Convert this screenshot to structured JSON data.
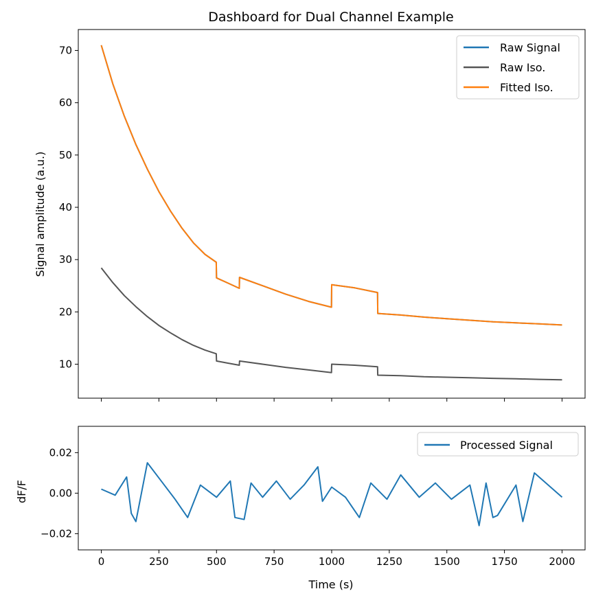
{
  "chart_data": [
    {
      "type": "line",
      "title": "Dashboard for Dual Channel Example",
      "xlabel": "",
      "ylabel": "Signal amplitude (a.u.)",
      "xlim": [
        -100,
        2100
      ],
      "ylim": [
        3.5,
        74
      ],
      "xticks": [
        0,
        250,
        500,
        750,
        1000,
        1250,
        1500,
        1750,
        2000
      ],
      "yticks": [
        10,
        20,
        30,
        40,
        50,
        60,
        70
      ],
      "yticklabels": [
        "10",
        "20",
        "30",
        "40",
        "50",
        "60",
        "70"
      ],
      "legend_position": "top-right",
      "grid": false,
      "series": [
        {
          "name": "Raw Signal",
          "color": "#1f77b4",
          "x": [
            0,
            50,
            100,
            150,
            200,
            250,
            300,
            350,
            400,
            450,
            499,
            500,
            550,
            599,
            600,
            700,
            800,
            900,
            999,
            1000,
            1100,
            1199,
            1200,
            1300,
            1400,
            1500,
            1600,
            1700,
            1800,
            1900,
            2000
          ],
          "y": [
            71.0,
            63.6,
            57.4,
            52.0,
            47.3,
            43.0,
            39.3,
            36.0,
            33.2,
            31.0,
            29.5,
            26.5,
            25.5,
            24.5,
            26.6,
            25.0,
            23.4,
            22.0,
            20.9,
            25.2,
            24.6,
            23.7,
            19.7,
            19.4,
            19.0,
            18.7,
            18.4,
            18.1,
            17.9,
            17.7,
            17.5
          ]
        },
        {
          "name": "Raw Iso.",
          "color": "#555555",
          "x": [
            0,
            50,
            100,
            150,
            200,
            250,
            300,
            350,
            400,
            450,
            499,
            500,
            550,
            599,
            600,
            700,
            800,
            900,
            999,
            1000,
            1100,
            1199,
            1200,
            1300,
            1400,
            1500,
            1600,
            1700,
            1800,
            1900,
            2000
          ],
          "y": [
            28.4,
            25.6,
            23.1,
            21.0,
            19.1,
            17.4,
            16.0,
            14.7,
            13.6,
            12.7,
            12.0,
            10.6,
            10.2,
            9.8,
            10.6,
            10.0,
            9.4,
            8.9,
            8.4,
            10.0,
            9.8,
            9.5,
            7.9,
            7.8,
            7.6,
            7.5,
            7.4,
            7.3,
            7.2,
            7.1,
            7.0
          ]
        },
        {
          "name": "Fitted Iso.",
          "color": "#ff7f0e",
          "x": [
            0,
            50,
            100,
            150,
            200,
            250,
            300,
            350,
            400,
            450,
            499,
            500,
            550,
            599,
            600,
            700,
            800,
            900,
            999,
            1000,
            1100,
            1199,
            1200,
            1300,
            1400,
            1500,
            1600,
            1700,
            1800,
            1900,
            2000
          ],
          "y": [
            71.0,
            63.6,
            57.4,
            52.0,
            47.3,
            43.0,
            39.3,
            36.0,
            33.2,
            31.0,
            29.5,
            26.5,
            25.5,
            24.5,
            26.6,
            25.0,
            23.4,
            22.0,
            20.9,
            25.2,
            24.6,
            23.7,
            19.7,
            19.4,
            19.0,
            18.7,
            18.4,
            18.1,
            17.9,
            17.7,
            17.5
          ]
        }
      ]
    },
    {
      "type": "line",
      "title": "",
      "xlabel": "Time (s)",
      "ylabel": "dF/F",
      "xlim": [
        -100,
        2100
      ],
      "ylim": [
        -0.028,
        0.033
      ],
      "xticks": [
        0,
        250,
        500,
        750,
        1000,
        1250,
        1500,
        1750,
        2000
      ],
      "xticklabels": [
        "0",
        "250",
        "500",
        "750",
        "1000",
        "1250",
        "1500",
        "1750",
        "2000"
      ],
      "yticks": [
        -0.02,
        0.0,
        0.02
      ],
      "yticklabels": [
        "−0.02",
        "0.00",
        "0.02"
      ],
      "legend_position": "top-right",
      "grid": false,
      "series": [
        {
          "name": "Processed Signal",
          "color": "#1f77b4",
          "x": [
            0,
            60,
            110,
            130,
            150,
            200,
            260,
            320,
            375,
            430,
            500,
            560,
            580,
            620,
            650,
            700,
            760,
            820,
            880,
            940,
            960,
            1000,
            1060,
            1120,
            1170,
            1240,
            1300,
            1380,
            1450,
            1520,
            1600,
            1640,
            1670,
            1700,
            1720,
            1800,
            1830,
            1880,
            1950,
            2000
          ],
          "y": [
            0.002,
            -0.001,
            0.008,
            -0.01,
            -0.014,
            0.015,
            0.006,
            -0.003,
            -0.012,
            0.004,
            -0.002,
            0.006,
            -0.012,
            -0.013,
            0.005,
            -0.002,
            0.006,
            -0.003,
            0.004,
            0.013,
            -0.004,
            0.003,
            -0.002,
            -0.012,
            0.005,
            -0.003,
            0.009,
            -0.002,
            0.005,
            -0.003,
            0.004,
            -0.016,
            0.005,
            -0.012,
            -0.011,
            0.004,
            -0.014,
            0.01,
            0.003,
            -0.002
          ]
        }
      ]
    }
  ]
}
